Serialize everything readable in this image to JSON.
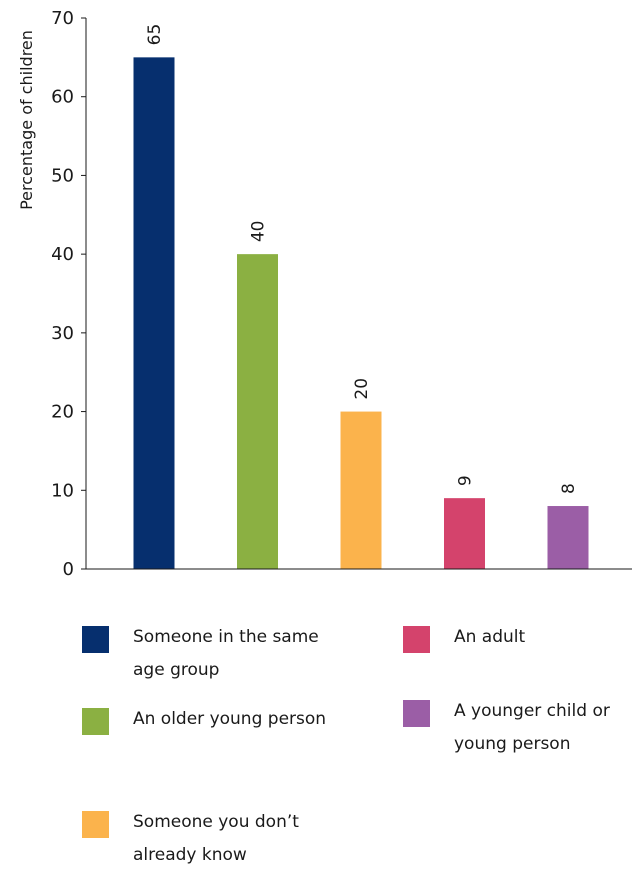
{
  "chart_data": {
    "type": "bar",
    "title": "",
    "xlabel": "",
    "ylabel": "Percentage of children",
    "ylim": [
      0,
      70
    ],
    "yticks": [
      0,
      10,
      20,
      30,
      40,
      50,
      60,
      70
    ],
    "grid": false,
    "legend_position": "bottom",
    "categories": [
      "Someone in the same age group",
      "An older young person",
      "Someone you don’t already know",
      "An adult",
      "A younger child or young person"
    ],
    "values": [
      65,
      40,
      20,
      9,
      8
    ],
    "data_labels": [
      "65",
      "40",
      "20",
      "9",
      "8"
    ],
    "colors": [
      "#062f6e",
      "#8bb042",
      "#fbb34c",
      "#d4436c",
      "#9b5ea6"
    ]
  },
  "legend": {
    "items": [
      {
        "lines": [
          "Someone in the same",
          "age group"
        ],
        "color": "#062f6e"
      },
      {
        "lines": [
          "An older young person"
        ],
        "color": "#8bb042"
      },
      {
        "lines": [
          "Someone you don’t",
          "already know"
        ],
        "color": "#fbb34c"
      },
      {
        "lines": [
          "An adult"
        ],
        "color": "#d4436c"
      },
      {
        "lines": [
          "A younger child or",
          "young person"
        ],
        "color": "#9b5ea6"
      }
    ]
  }
}
